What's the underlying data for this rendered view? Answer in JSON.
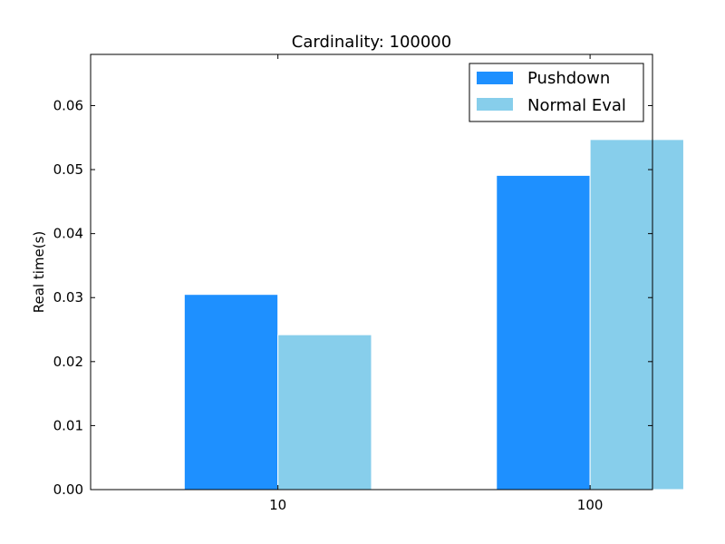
{
  "chart_data": {
    "type": "bar",
    "title": "Cardinality: 100000",
    "xlabel": "",
    "ylabel": "Real time(s)",
    "categories": [
      "10",
      "100"
    ],
    "series": [
      {
        "name": "Pushdown",
        "values": [
          0.0305,
          0.0491
        ],
        "color": "#1e90ff"
      },
      {
        "name": "Normal Eval",
        "values": [
          0.0242,
          0.0547
        ],
        "color": "#87ceeb"
      }
    ],
    "ylim": [
      0,
      0.068
    ],
    "yticks": [
      0.0,
      0.01,
      0.02,
      0.03,
      0.04,
      0.05,
      0.06
    ],
    "ytick_labels": [
      "0.00",
      "0.01",
      "0.02",
      "0.03",
      "0.04",
      "0.05",
      "0.06"
    ],
    "xlim": [
      -0.3,
      1.5
    ],
    "category_positions": [
      0,
      1
    ],
    "bar_width": 0.3,
    "legend": {
      "placement": "top-right"
    },
    "grid": false
  }
}
